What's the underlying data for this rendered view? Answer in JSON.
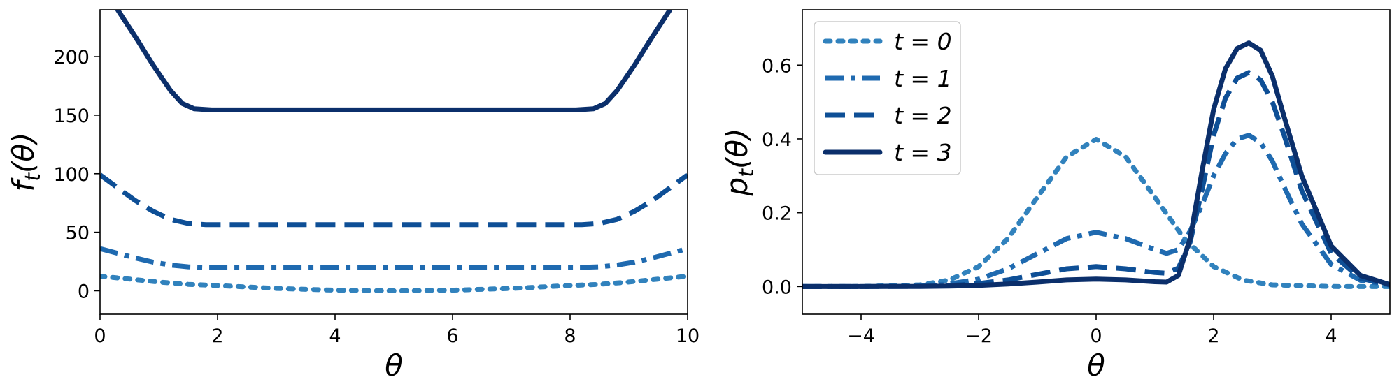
{
  "colors": {
    "t0": "#3182bd",
    "t1": "#1f6ab0",
    "t2": "#0e4f96",
    "t3": "#0b2f6b"
  },
  "chart_data": [
    {
      "type": "line",
      "xlabel": "θ",
      "ylabel": "f_t(θ)",
      "ylabel_main": "f",
      "ylabel_sub": "t",
      "ylabel_tail": "(θ)",
      "xlim": [
        0,
        10
      ],
      "ylim": [
        -20,
        240
      ],
      "xticks": [
        0,
        2,
        4,
        6,
        8,
        10
      ],
      "xtick_labels": [
        "0",
        "2",
        "4",
        "6",
        "8",
        "10"
      ],
      "yticks": [
        0,
        50,
        100,
        150,
        200
      ],
      "ytick_labels": [
        "0",
        "50",
        "100",
        "150",
        "200"
      ],
      "grid": false,
      "series": [
        {
          "style": "dotted",
          "color_key": "t0",
          "x": [
            0,
            0.5,
            1,
            1.5,
            2,
            3,
            4,
            5,
            6,
            7,
            8,
            8.5,
            9,
            9.5,
            10
          ],
          "y": [
            12.5,
            10,
            7.5,
            5.5,
            4.5,
            2,
            0.5,
            0,
            0.5,
            2,
            4.5,
            5.5,
            7.5,
            10,
            12.5
          ]
        },
        {
          "style": "dashdot",
          "color_key": "t1",
          "x": [
            0,
            0.3,
            0.6,
            0.9,
            1.2,
            1.5,
            1.8,
            2,
            5,
            8,
            8.2,
            8.5,
            8.8,
            9.1,
            9.4,
            9.7,
            10
          ],
          "y": [
            36,
            32,
            28,
            24.5,
            22,
            20.5,
            20,
            20,
            20,
            20,
            20,
            20.5,
            22,
            24.5,
            28,
            32,
            36
          ]
        },
        {
          "style": "dashed",
          "color_key": "t2",
          "x": [
            0,
            0.3,
            0.6,
            0.9,
            1.2,
            1.5,
            1.8,
            2,
            5,
            8,
            8.2,
            8.5,
            8.8,
            9.1,
            9.4,
            9.7,
            10
          ],
          "y": [
            99,
            88,
            77,
            68,
            61,
            57.5,
            56.5,
            56.5,
            56.5,
            56.5,
            56.5,
            57.5,
            61,
            68,
            77,
            88,
            99
          ]
        },
        {
          "style": "solid",
          "color_key": "t3",
          "x": [
            0.3,
            0.6,
            0.9,
            1.2,
            1.4,
            1.6,
            1.9,
            5,
            8.1,
            8.4,
            8.6,
            8.8,
            9.1,
            9.4,
            9.7
          ],
          "y": [
            240,
            217,
            193,
            171,
            160,
            155.5,
            154.5,
            154.5,
            154.5,
            155.5,
            160,
            171,
            193,
            217,
            240
          ]
        }
      ]
    },
    {
      "type": "line",
      "xlabel": "θ",
      "ylabel": "p_t(θ)",
      "ylabel_main": "p",
      "ylabel_sub": "t",
      "ylabel_tail": "(θ)",
      "xlim": [
        -5,
        5
      ],
      "ylim": [
        -0.075,
        0.75
      ],
      "xticks": [
        -4,
        -2,
        0,
        2,
        4
      ],
      "xtick_labels": [
        "−4",
        "−2",
        "0",
        "2",
        "4"
      ],
      "yticks": [
        0.0,
        0.2,
        0.4,
        0.6
      ],
      "ytick_labels": [
        "0.0",
        "0.2",
        "0.4",
        "0.6"
      ],
      "grid": false,
      "legend": {
        "position": "upper-left",
        "entries": [
          {
            "label": "t = 0",
            "style": "dotted",
            "color_key": "t0"
          },
          {
            "label": "t = 1",
            "style": "dashdot",
            "color_key": "t1"
          },
          {
            "label": "t = 2",
            "style": "dashed",
            "color_key": "t2"
          },
          {
            "label": "t = 3",
            "style": "solid",
            "color_key": "t3"
          }
        ]
      },
      "series": [
        {
          "style": "dotted",
          "color_key": "t0",
          "x": [
            -5,
            -4,
            -3,
            -2.5,
            -2,
            -1.5,
            -1,
            -0.5,
            0,
            0.5,
            1,
            1.5,
            2,
            2.5,
            3,
            4,
            5
          ],
          "y": [
            0.0,
            0.0001,
            0.0044,
            0.0175,
            0.054,
            0.13,
            0.242,
            0.352,
            0.399,
            0.352,
            0.242,
            0.13,
            0.054,
            0.0175,
            0.0044,
            0.0001,
            0.0
          ]
        },
        {
          "style": "dashdot",
          "color_key": "t1",
          "x": [
            -5,
            -4,
            -3,
            -2.5,
            -2,
            -1.5,
            -1,
            -0.5,
            0,
            0.5,
            1,
            1.2,
            1.4,
            1.6,
            1.8,
            2,
            2.2,
            2.4,
            2.6,
            2.8,
            3,
            3.2,
            3.5,
            4,
            4.5,
            5
          ],
          "y": [
            0.0,
            0.0,
            0.002,
            0.007,
            0.02,
            0.048,
            0.089,
            0.13,
            0.147,
            0.13,
            0.1,
            0.09,
            0.1,
            0.15,
            0.22,
            0.3,
            0.36,
            0.4,
            0.41,
            0.39,
            0.34,
            0.27,
            0.17,
            0.06,
            0.017,
            0.004
          ]
        },
        {
          "style": "dashed",
          "color_key": "t2",
          "x": [
            -5,
            -4,
            -3,
            -2.5,
            -2,
            -1.5,
            -1,
            -0.5,
            0,
            0.5,
            1,
            1.2,
            1.4,
            1.6,
            1.8,
            2,
            2.2,
            2.4,
            2.6,
            2.8,
            3,
            3.2,
            3.5,
            4,
            4.5,
            5
          ],
          "y": [
            0.0,
            0.0,
            0.0007,
            0.0025,
            0.008,
            0.018,
            0.033,
            0.048,
            0.054,
            0.048,
            0.038,
            0.036,
            0.05,
            0.12,
            0.26,
            0.41,
            0.51,
            0.565,
            0.58,
            0.56,
            0.5,
            0.41,
            0.26,
            0.09,
            0.022,
            0.004
          ]
        },
        {
          "style": "solid",
          "color_key": "t3",
          "x": [
            -5,
            -4,
            -3,
            -2.5,
            -2,
            -1.5,
            -1,
            -0.5,
            0,
            0.5,
            1,
            1.2,
            1.4,
            1.6,
            1.8,
            2,
            2.2,
            2.4,
            2.6,
            2.8,
            3,
            3.2,
            3.5,
            4,
            4.5,
            5
          ],
          "y": [
            0.0,
            0.0,
            0.0003,
            0.001,
            0.003,
            0.007,
            0.012,
            0.018,
            0.02,
            0.018,
            0.013,
            0.012,
            0.03,
            0.13,
            0.31,
            0.48,
            0.59,
            0.645,
            0.66,
            0.64,
            0.57,
            0.46,
            0.3,
            0.11,
            0.03,
            0.005
          ]
        }
      ]
    }
  ]
}
